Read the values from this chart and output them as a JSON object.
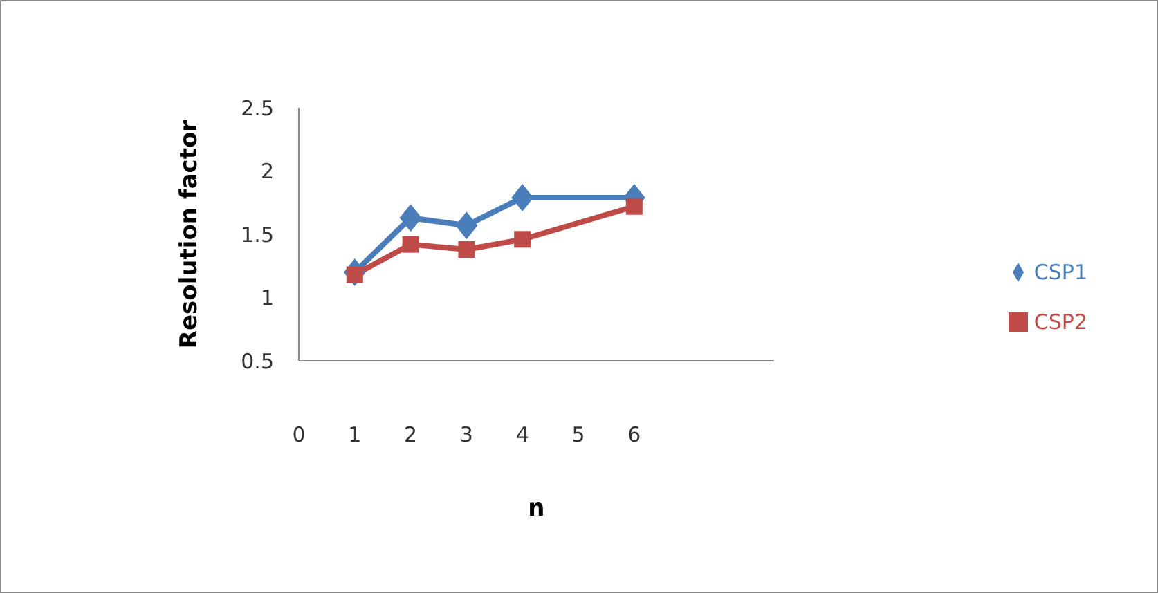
{
  "chart_data": {
    "type": "line",
    "xlabel": "n",
    "ylabel": "Resolution factor",
    "x": [
      1,
      2,
      3,
      4,
      6
    ],
    "series": [
      {
        "name": "CSP1",
        "color": "#4a7ebb",
        "marker": "diamond",
        "values": [
          1.2,
          1.63,
          1.57,
          1.79,
          1.79
        ]
      },
      {
        "name": "CSP2",
        "color": "#be4b48",
        "marker": "square",
        "values": [
          1.18,
          1.42,
          1.38,
          1.46,
          1.72
        ]
      }
    ],
    "xlim": [
      0,
      8.5
    ],
    "xticks": [
      0,
      1,
      2,
      3,
      4,
      5,
      6
    ],
    "ylim": [
      0.5,
      2.5
    ],
    "yticks": [
      0.5,
      1,
      1.5,
      2,
      2.5
    ],
    "grid": false,
    "legend": "right"
  }
}
